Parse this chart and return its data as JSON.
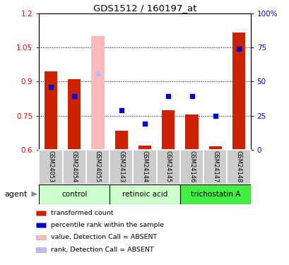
{
  "title": "GDS1512 / 160197_at",
  "samples": [
    "GSM24053",
    "GSM24054",
    "GSM24055",
    "GSM24143",
    "GSM24144",
    "GSM24145",
    "GSM24146",
    "GSM24147",
    "GSM24148"
  ],
  "transformed_count": [
    0.945,
    0.91,
    0.61,
    0.685,
    0.618,
    0.775,
    0.755,
    0.615,
    1.115
  ],
  "absent_value": [
    null,
    null,
    1.1,
    null,
    null,
    null,
    null,
    null,
    null
  ],
  "percentile_rank": [
    0.875,
    0.835,
    null,
    0.775,
    0.715,
    0.835,
    0.835,
    0.75,
    1.045
  ],
  "absent_rank": [
    null,
    null,
    0.935,
    null,
    null,
    null,
    null,
    null,
    null
  ],
  "ylim_left": [
    0.6,
    1.2
  ],
  "ylim_right": [
    0,
    100
  ],
  "yticks_left": [
    0.6,
    0.75,
    0.9,
    1.05,
    1.2
  ],
  "yticks_right": [
    0,
    25,
    50,
    75,
    100
  ],
  "bar_color": "#cc2200",
  "absent_bar_color": "#ffbbbb",
  "dot_color": "#0000cc",
  "absent_dot_color": "#bbbbff",
  "group_data": [
    {
      "label": "control",
      "start": 0,
      "end": 2,
      "color": "#ccffcc"
    },
    {
      "label": "retinoic acid",
      "start": 3,
      "end": 5,
      "color": "#ccffcc"
    },
    {
      "label": "trichostatin A",
      "start": 6,
      "end": 8,
      "color": "#44ee44"
    }
  ],
  "legend_items": [
    {
      "label": "transformed count",
      "color": "#cc2200"
    },
    {
      "label": "percentile rank within the sample",
      "color": "#0000cc"
    },
    {
      "label": "value, Detection Call = ABSENT",
      "color": "#ffbbbb"
    },
    {
      "label": "rank, Detection Call = ABSENT",
      "color": "#bbbbff"
    }
  ]
}
